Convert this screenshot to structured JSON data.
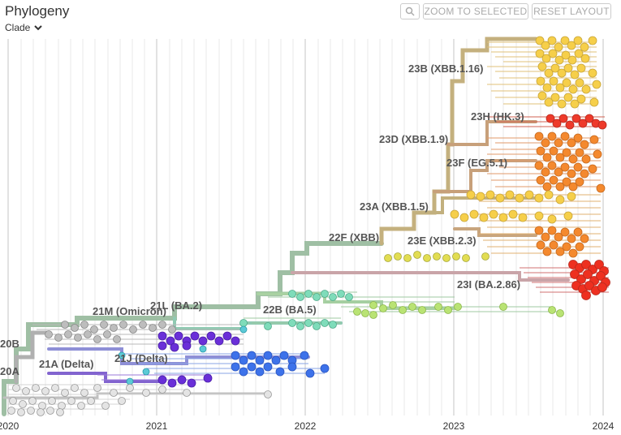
{
  "header": {
    "title": "Phylogeny",
    "color_by": "Clade",
    "zoom_selected_label": "ZOOM TO SELECTED",
    "reset_layout_label": "RESET LAYOUT"
  },
  "axis": {
    "ticks": [
      "2020",
      "2021",
      "2022",
      "2023",
      "2024"
    ]
  },
  "clades": [
    {
      "label": "23B (XBB.1.16)",
      "color": "#f2c94c"
    },
    {
      "label": "23H (HK.3)",
      "color": "#e53c2c"
    },
    {
      "label": "23D (XBB.1.9)",
      "color": "#f08a2c"
    },
    {
      "label": "23F (EG.5.1)",
      "color": "#f5a030"
    },
    {
      "label": "23A (XBB.1.5)",
      "color": "#f2c94c"
    },
    {
      "label": "22F (XBB)",
      "color": "#c9d36b"
    },
    {
      "label": "23E (XBB.2.3)",
      "color": "#f08a2c"
    },
    {
      "label": "23I (BA.2.86)",
      "color": "#e53020"
    },
    {
      "label": "21L (BA.2)",
      "color": "#7fc7a3"
    },
    {
      "label": "21M (Omicron)",
      "color": "#9fc4a8"
    },
    {
      "label": "22B (BA.5)",
      "color": "#6fcfb0"
    },
    {
      "label": "20B",
      "color": "#9e9e9e"
    },
    {
      "label": "21A (Delta)",
      "color": "#6a2fd8"
    },
    {
      "label": "21J (Delta)",
      "color": "#3b6fe8"
    },
    {
      "label": "20A",
      "color": "#c8c8c8"
    }
  ]
}
